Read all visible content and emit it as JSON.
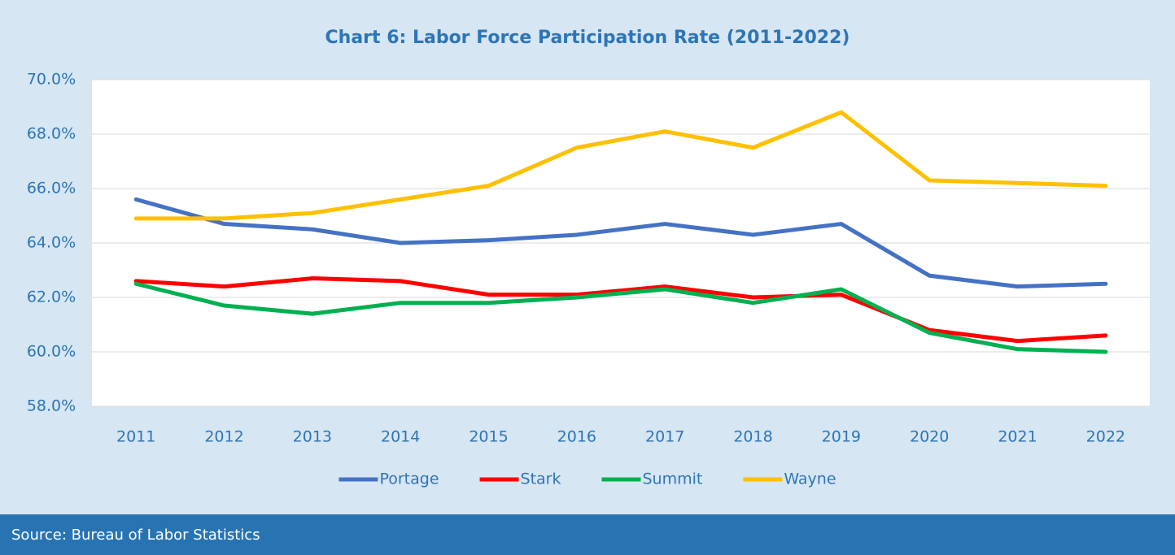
{
  "chart_data": {
    "type": "line",
    "title": "Chart 6: Labor Force Participation Rate (2011-2022)",
    "categories": [
      "2011",
      "2012",
      "2013",
      "2014",
      "2015",
      "2016",
      "2017",
      "2018",
      "2019",
      "2020",
      "2021",
      "2022"
    ],
    "series": [
      {
        "name": "Portage",
        "color": "#4472c4",
        "values": [
          65.6,
          64.7,
          64.5,
          64.0,
          64.1,
          64.3,
          64.7,
          64.3,
          64.7,
          62.8,
          62.4,
          62.5
        ]
      },
      {
        "name": "Stark",
        "color": "#ff0000",
        "values": [
          62.6,
          62.4,
          62.7,
          62.6,
          62.1,
          62.1,
          62.4,
          62.0,
          62.1,
          60.8,
          60.4,
          60.6
        ]
      },
      {
        "name": "Summit",
        "color": "#00b050",
        "values": [
          62.5,
          61.7,
          61.4,
          61.8,
          61.8,
          62.0,
          62.3,
          61.8,
          62.3,
          60.7,
          60.1,
          60.0
        ]
      },
      {
        "name": "Wayne",
        "color": "#ffc000",
        "values": [
          64.9,
          64.9,
          65.1,
          65.6,
          66.1,
          67.5,
          68.1,
          67.5,
          68.8,
          66.3,
          66.2,
          66.1
        ]
      }
    ],
    "ylim": [
      58,
      70
    ],
    "yticks": [
      {
        "value": 58,
        "label": "58.0%"
      },
      {
        "value": 60,
        "label": "60.0%"
      },
      {
        "value": 62,
        "label": "62.0%"
      },
      {
        "value": 64,
        "label": "64.0%"
      },
      {
        "value": 66,
        "label": "66.0%"
      },
      {
        "value": 68,
        "label": "68.0%"
      },
      {
        "value": 70,
        "label": "70.0%"
      }
    ],
    "grid": true,
    "legend": "bottom",
    "source": "Source: Bureau of Labor Statistics"
  }
}
